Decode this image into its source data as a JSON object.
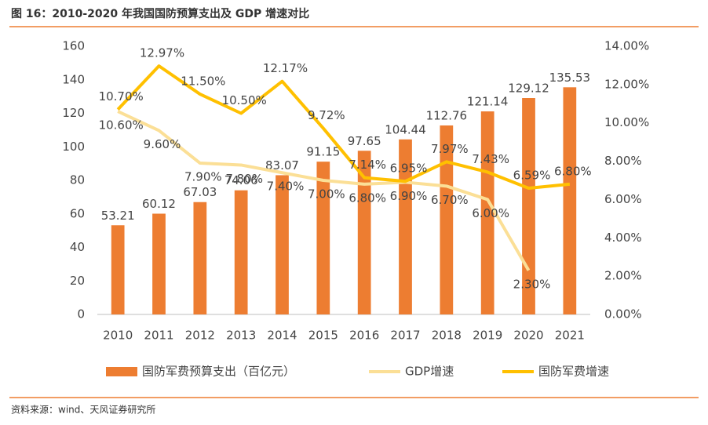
{
  "chart_data": {
    "type": "bar",
    "title": "图 16：2010-2020 年我国国防预算支出及 GDP 增速对比",
    "source": "资料来源：wind、天风证券研究所",
    "categories": [
      "2010",
      "2011",
      "2012",
      "2013",
      "2014",
      "2015",
      "2016",
      "2017",
      "2018",
      "2019",
      "2020",
      "2021"
    ],
    "ylim": [
      0,
      160
    ],
    "yticks": [
      0,
      20,
      40,
      60,
      80,
      100,
      120,
      140,
      160
    ],
    "y2lim": [
      0,
      14
    ],
    "y2ticks": [
      {
        "value": 0,
        "label": "0.00%"
      },
      {
        "value": 2,
        "label": "2.00%"
      },
      {
        "value": 4,
        "label": "4.00%"
      },
      {
        "value": 6,
        "label": "6.00%"
      },
      {
        "value": 8,
        "label": "8.00%"
      },
      {
        "value": 10,
        "label": "10.00%"
      },
      {
        "value": 12,
        "label": "12.00%"
      },
      {
        "value": 14,
        "label": "14.00%"
      }
    ],
    "series": [
      {
        "name": "国防军费预算支出（百亿元）",
        "type": "bar",
        "color": "#ed7d31",
        "values": [
          53.21,
          60.12,
          67.03,
          74.06,
          83.07,
          91.15,
          97.65,
          104.44,
          112.76,
          121.14,
          129.12,
          135.53
        ]
      },
      {
        "name": "GDP增速",
        "type": "line",
        "axis": "y2",
        "color": "#fbdf96",
        "values": [
          10.6,
          9.6,
          7.9,
          7.8,
          7.4,
          7.0,
          6.8,
          6.9,
          6.7,
          6.0,
          2.3,
          null
        ],
        "value_labels": [
          "10.60%",
          "9.60%",
          "7.90%",
          "7.80%",
          "7.40%",
          "7.00%",
          "6.80%",
          "6.90%",
          "6.70%",
          "6.00%",
          "2.30%",
          null
        ]
      },
      {
        "name": "国防军费增速",
        "type": "line",
        "axis": "y2",
        "color": "#ffc000",
        "values": [
          10.7,
          12.97,
          11.5,
          10.5,
          12.17,
          9.72,
          7.14,
          6.95,
          7.97,
          7.43,
          6.59,
          6.8
        ],
        "value_labels": [
          "10.70%",
          "12.97%",
          "11.50%",
          "10.50%",
          "12.17%",
          "9.72%",
          "7.14%",
          "6.95%",
          "7.97%",
          "7.43%",
          "6.59%",
          "6.80%"
        ]
      }
    ]
  }
}
